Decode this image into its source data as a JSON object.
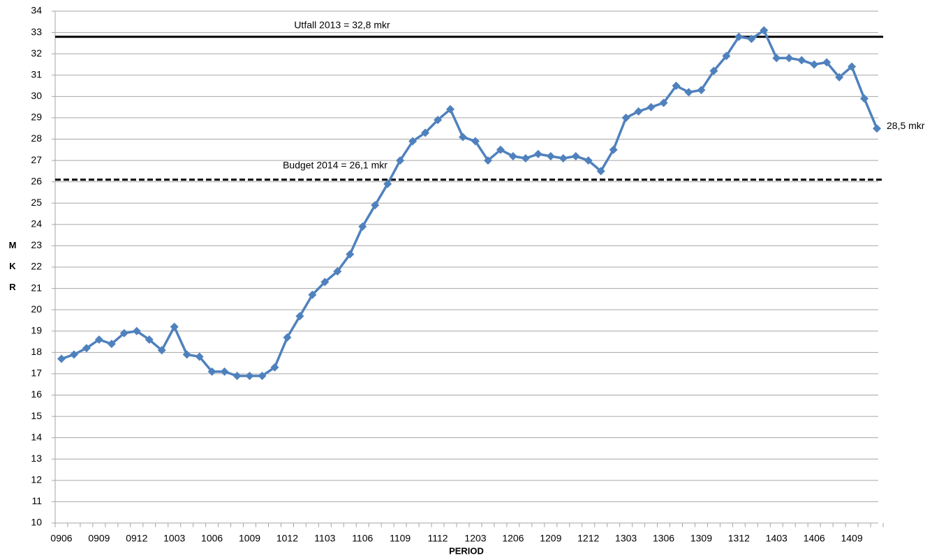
{
  "chart_data": {
    "type": "line",
    "xlabel": "PERIOD",
    "ylabel": "MKR",
    "categories": [
      "0906",
      null,
      null,
      "0909",
      null,
      null,
      "0912",
      null,
      null,
      "1003",
      null,
      null,
      "1006",
      null,
      null,
      "1009",
      null,
      null,
      "1012",
      null,
      null,
      "1103",
      null,
      null,
      "1106",
      null,
      null,
      "1109",
      null,
      null,
      "1112",
      null,
      null,
      "1203",
      null,
      null,
      "1206",
      null,
      null,
      "1209",
      null,
      null,
      "1212",
      null,
      null,
      "1303",
      null,
      null,
      "1306",
      null,
      null,
      "1309",
      null,
      null,
      "1312",
      null,
      null,
      "1403",
      null,
      null,
      "1406",
      null,
      null,
      "1409",
      null,
      null
    ],
    "series": [
      {
        "color": "#4f81bd",
        "values": [
          17.7,
          17.9,
          18.2,
          18.6,
          18.4,
          18.9,
          19.0,
          18.6,
          18.1,
          19.2,
          17.9,
          17.8,
          17.1,
          17.1,
          16.9,
          16.9,
          16.9,
          17.3,
          18.7,
          19.7,
          20.7,
          21.3,
          21.8,
          22.6,
          23.9,
          24.9,
          25.9,
          27.0,
          27.9,
          28.3,
          28.9,
          29.4,
          28.1,
          27.9,
          27.0,
          27.5,
          27.2,
          27.1,
          27.3,
          27.2,
          27.1,
          27.2,
          27.0,
          26.5,
          27.5,
          29.0,
          29.3,
          29.5,
          29.7,
          30.5,
          30.2,
          30.3,
          31.2,
          31.9,
          32.8,
          32.7,
          33.1,
          31.8,
          31.8,
          31.7,
          31.5,
          31.6,
          30.9,
          31.4,
          29.9,
          28.5
        ],
        "value_labels": [
          null,
          null,
          null,
          null,
          null,
          null,
          null,
          null,
          null,
          null,
          null,
          null,
          null,
          null,
          null,
          null,
          null,
          null,
          null,
          null,
          null,
          null,
          null,
          null,
          null,
          null,
          null,
          null,
          null,
          null,
          null,
          null,
          null,
          null,
          null,
          null,
          null,
          null,
          null,
          null,
          null,
          null,
          null,
          null,
          null,
          null,
          null,
          null,
          null,
          null,
          null,
          null,
          null,
          null,
          null,
          null,
          null,
          null,
          null,
          null,
          null,
          null,
          null,
          null,
          null,
          "28,5 mkr"
        ]
      }
    ],
    "reference_lines": [
      {
        "label": "Utfall 2013 = 32,8 mkr",
        "value": 32.8,
        "style": "solid",
        "color": "#000000"
      },
      {
        "label": "Budget 2014 =  26,1 mkr",
        "value": 26.1,
        "style": "dashed",
        "color": "#000000"
      }
    ],
    "ylim": [
      10,
      34
    ],
    "yticks": [
      10,
      11,
      12,
      13,
      14,
      15,
      16,
      17,
      18,
      19,
      20,
      21,
      22,
      23,
      24,
      25,
      26,
      27,
      28,
      29,
      30,
      31,
      32,
      33,
      34
    ],
    "grid": true
  }
}
